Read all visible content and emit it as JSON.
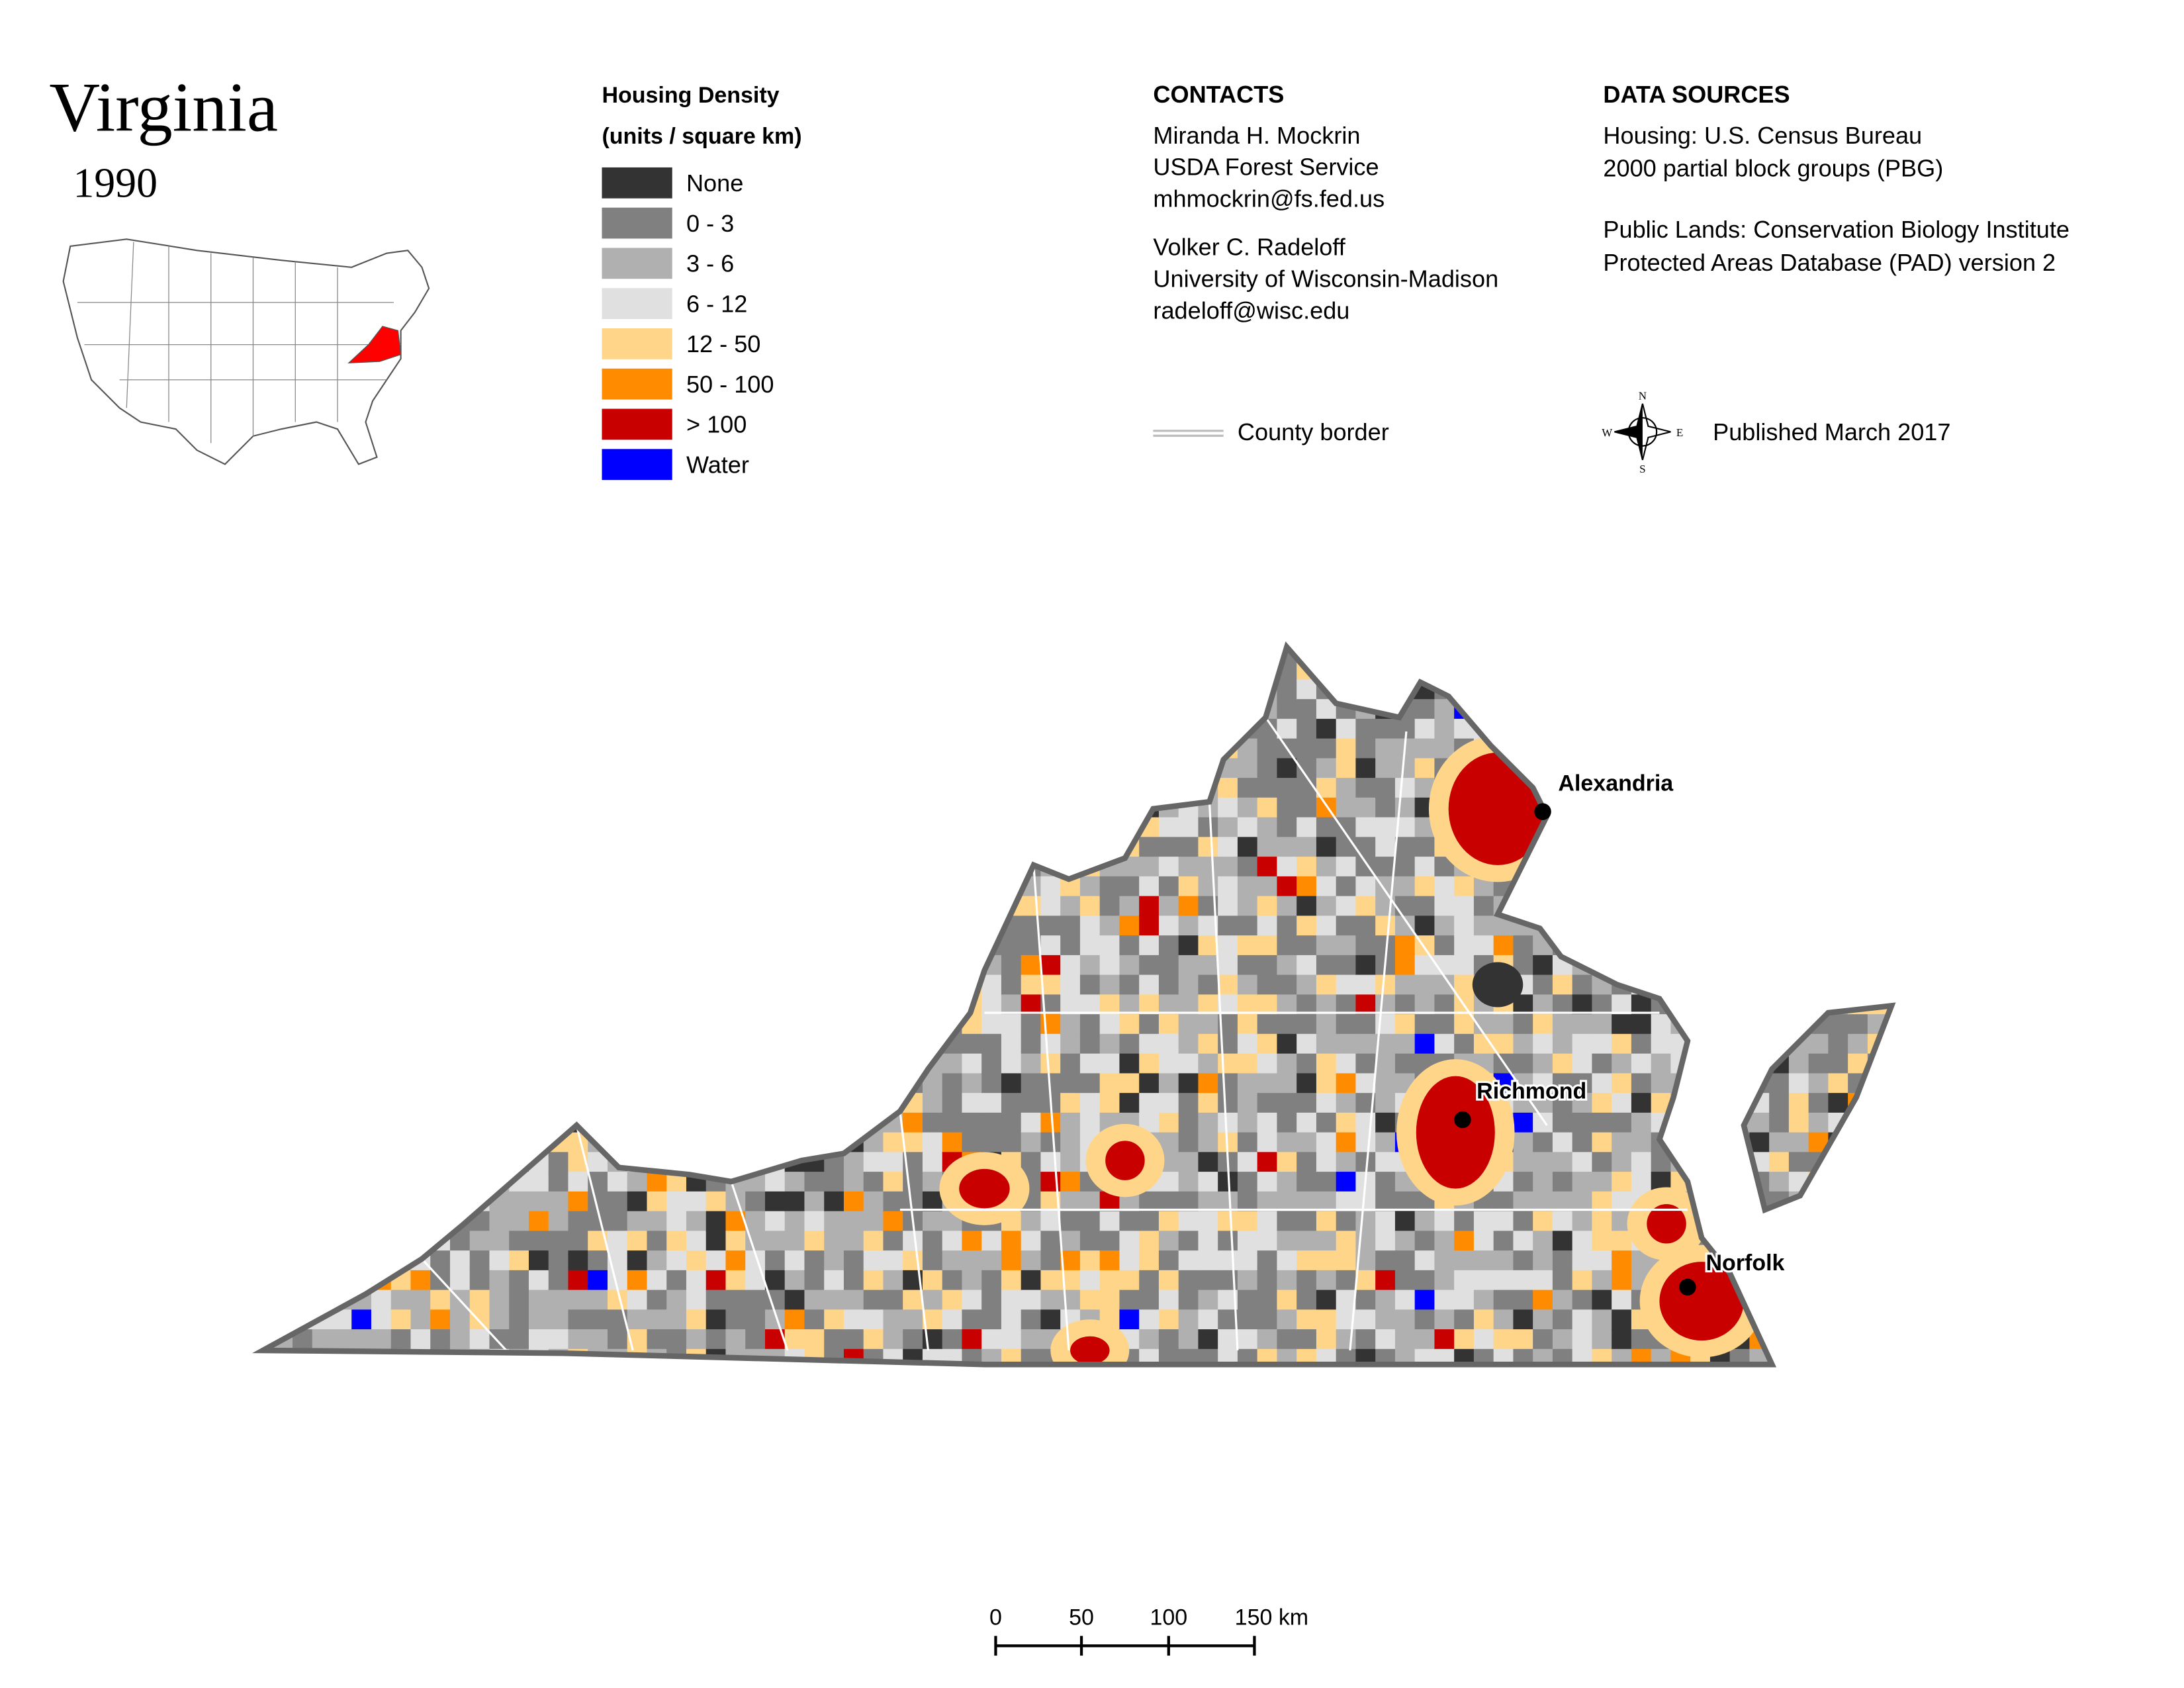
{
  "header": {
    "title": "Virginia",
    "year": "1990"
  },
  "legend": {
    "title_lines": [
      "Housing Density",
      "(units / square km)"
    ],
    "items": [
      {
        "label": "None",
        "color": "#333333"
      },
      {
        "label": "0 - 3",
        "color": "#808080"
      },
      {
        "label": "3 - 6",
        "color": "#b0b0b0"
      },
      {
        "label": "6 - 12",
        "color": "#e0e0e0"
      },
      {
        "label": "12 - 50",
        "color": "#ffd58a"
      },
      {
        "label": "50 - 100",
        "color": "#ff8c00"
      },
      {
        "label": "> 100",
        "color": "#c80000"
      },
      {
        "label": "Water",
        "color": "#0000ff"
      }
    ]
  },
  "contacts": {
    "heading": "CONTACTS",
    "people": [
      {
        "lines": [
          "Miranda H. Mockrin",
          "USDA Forest Service",
          "mhmockrin@fs.fed.us"
        ]
      },
      {
        "lines": [
          "Volker C. Radeloff",
          "University of Wisconsin-Madison",
          "radeloff@wisc.edu"
        ]
      }
    ]
  },
  "data_sources": {
    "heading": "DATA SOURCES",
    "blocks": [
      {
        "lines": [
          "Housing: U.S. Census Bureau",
          "2000 partial block groups (PBG)"
        ]
      },
      {
        "lines": [
          "Public Lands: Conservation Biology Institute",
          "Protected Areas Database (PAD) version 2"
        ]
      }
    ]
  },
  "county_border_label": "County border",
  "compass": {
    "n": "N",
    "e": "E",
    "s": "S",
    "w": "W"
  },
  "published": "Published March 2017",
  "cities": [
    {
      "label": "Alexandria"
    },
    {
      "label": "Richmond"
    },
    {
      "label": "Norfolk"
    }
  ],
  "scale_bar": {
    "labels": [
      "0",
      "50",
      "100",
      "150 km"
    ]
  }
}
